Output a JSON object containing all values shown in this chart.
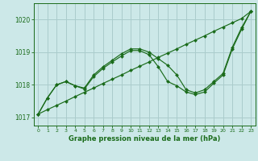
{
  "title": "Graphe pression niveau de la mer (hPa)",
  "background_color": "#cce8e8",
  "grid_color": "#aacccc",
  "line_color": "#1a6b1a",
  "marker_color": "#1a6b1a",
  "xlim": [
    -0.5,
    23.5
  ],
  "ylim": [
    1016.75,
    1020.5
  ],
  "yticks": [
    1017,
    1018,
    1019,
    1020
  ],
  "xticks": [
    0,
    1,
    2,
    3,
    4,
    5,
    6,
    7,
    8,
    9,
    10,
    11,
    12,
    13,
    14,
    15,
    16,
    17,
    18,
    19,
    20,
    21,
    22,
    23
  ],
  "series": [
    {
      "x": [
        0,
        1,
        2,
        3,
        4,
        5,
        6,
        7,
        8,
        9,
        10,
        11,
        12,
        13,
        14,
        15,
        16,
        17,
        18,
        19,
        20,
        21,
        22,
        23
      ],
      "y": [
        1017.1,
        1017.24,
        1017.37,
        1017.5,
        1017.64,
        1017.77,
        1017.9,
        1018.04,
        1018.17,
        1018.3,
        1018.44,
        1018.57,
        1018.7,
        1018.84,
        1018.97,
        1019.1,
        1019.24,
        1019.37,
        1019.5,
        1019.64,
        1019.77,
        1019.9,
        1020.03,
        1020.25
      ]
    },
    {
      "x": [
        0,
        1,
        2,
        3,
        4,
        5,
        6,
        7,
        8,
        9,
        10,
        11,
        12,
        13,
        14,
        15,
        16,
        17,
        18,
        19,
        20,
        21,
        22,
        23
      ],
      "y": [
        1017.1,
        1017.6,
        1018.0,
        1018.1,
        1017.97,
        1017.9,
        1018.3,
        1018.55,
        1018.75,
        1018.95,
        1019.1,
        1019.1,
        1019.0,
        1018.8,
        1018.6,
        1018.3,
        1017.85,
        1017.75,
        1017.85,
        1018.1,
        1018.35,
        1019.15,
        1019.75,
        1020.25
      ]
    },
    {
      "x": [
        0,
        1,
        2,
        3,
        4,
        5,
        6,
        7,
        8,
        9,
        10,
        11,
        12,
        13,
        14,
        15,
        16,
        17,
        18,
        19,
        20,
        21,
        22,
        23
      ],
      "y": [
        1017.1,
        1017.6,
        1018.0,
        1018.1,
        1017.97,
        1017.87,
        1018.25,
        1018.5,
        1018.7,
        1018.88,
        1019.05,
        1019.05,
        1018.92,
        1018.55,
        1018.1,
        1017.97,
        1017.78,
        1017.7,
        1017.78,
        1018.05,
        1018.3,
        1019.1,
        1019.7,
        1020.25
      ]
    }
  ]
}
